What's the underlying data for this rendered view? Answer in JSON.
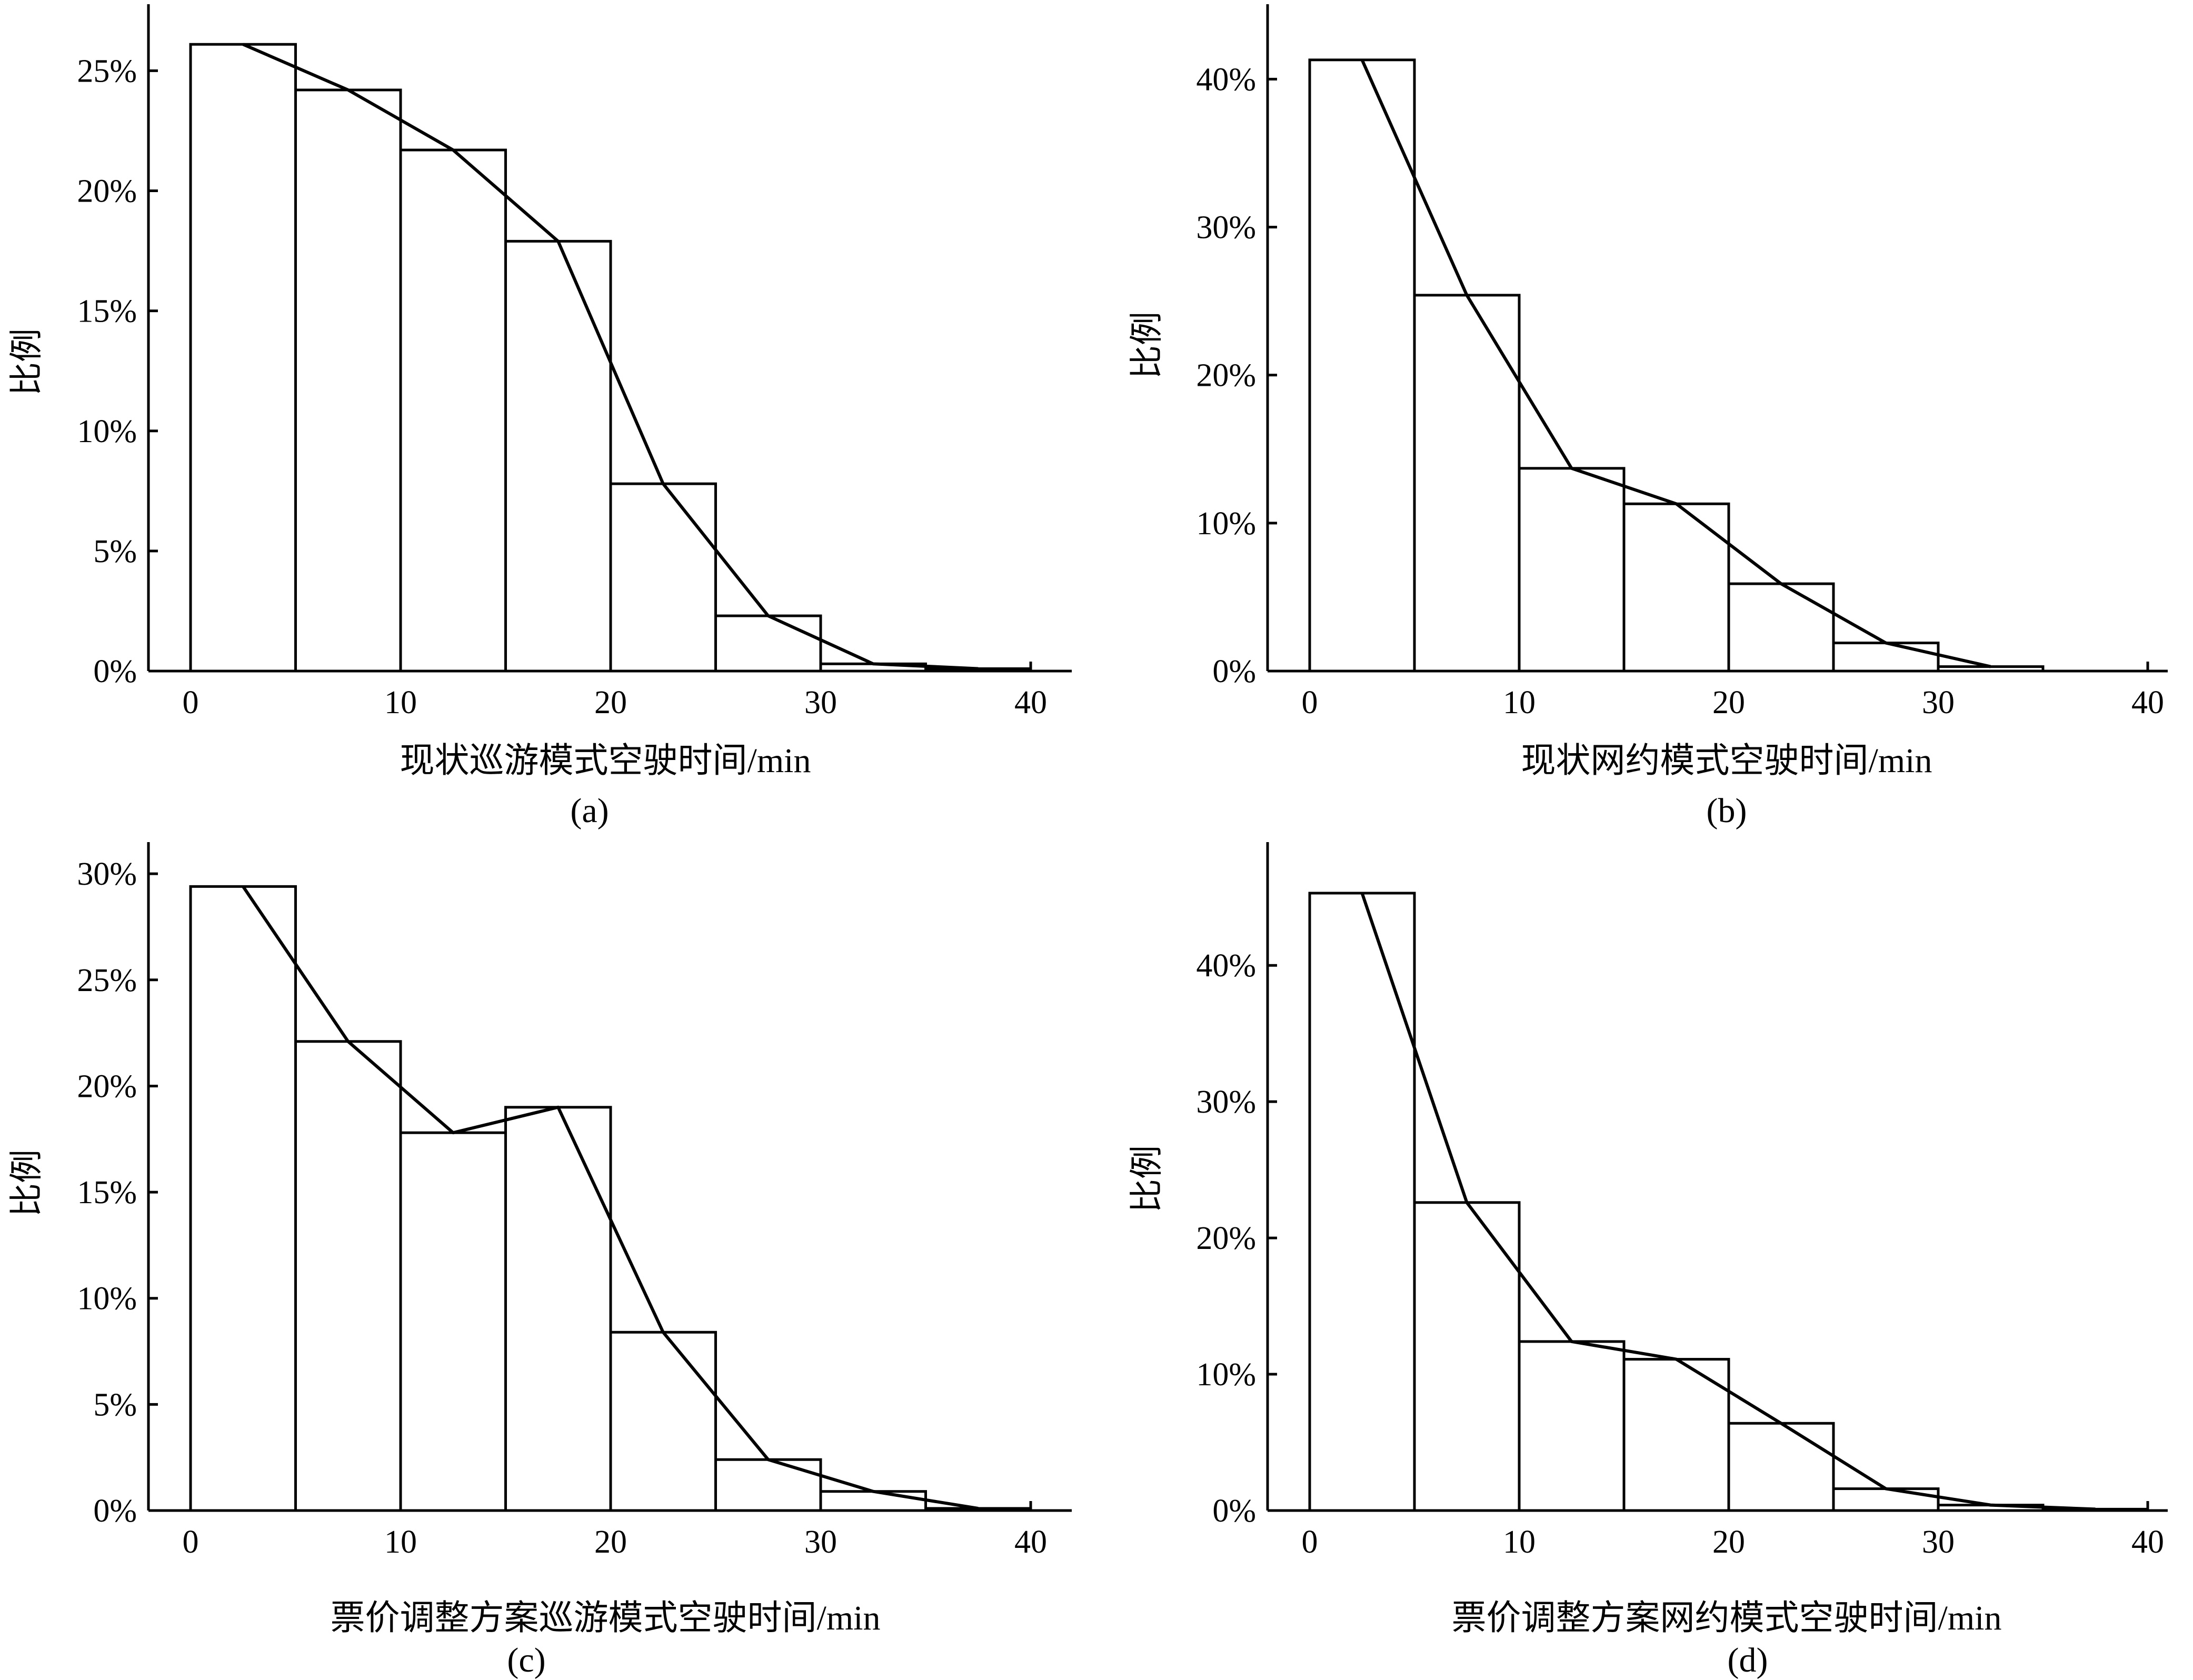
{
  "chart_data": [
    {
      "type": "bar",
      "subplot": "a",
      "caption": "(a)",
      "xlabel": "现状巡游模式空驶时间/min",
      "ylabel": "比例",
      "xlim": [
        0,
        40
      ],
      "ylim": [
        0,
        26.5
      ],
      "xticks": [
        0,
        10,
        20,
        30,
        40
      ],
      "xtick_labels": [
        "0",
        "10",
        "20",
        "30",
        "40"
      ],
      "yticks": [
        0,
        5,
        10,
        15,
        20,
        25
      ],
      "ytick_labels": [
        "0%",
        "5%",
        "10%",
        "15%",
        "20%",
        "25%"
      ],
      "bin_width": 5,
      "bin_starts": [
        0,
        5,
        10,
        15,
        20,
        25,
        30,
        35
      ],
      "values": [
        26.1,
        24.2,
        21.7,
        17.9,
        7.8,
        2.3,
        0.3,
        0.1
      ],
      "line": {
        "x": [
          2.5,
          7.5,
          12.5,
          17.5,
          22.5,
          27.5,
          32.5,
          37.5
        ],
        "y": [
          26.1,
          24.2,
          21.7,
          17.9,
          7.8,
          2.3,
          0.3,
          0.1
        ]
      },
      "grid": false,
      "legend": "none"
    },
    {
      "type": "bar",
      "subplot": "b",
      "caption": "(b)",
      "xlabel": "现状网约模式空驶时间/min",
      "ylabel": "比例",
      "xlim": [
        0,
        40
      ],
      "ylim": [
        0,
        43
      ],
      "xticks": [
        0,
        10,
        20,
        30,
        40
      ],
      "xtick_labels": [
        "0",
        "10",
        "20",
        "30",
        "40"
      ],
      "yticks": [
        0,
        10,
        20,
        30,
        40
      ],
      "ytick_labels": [
        "0%",
        "10%",
        "20%",
        "30%",
        "40%"
      ],
      "bin_width": 5,
      "bin_starts": [
        0,
        5,
        10,
        15,
        20,
        25,
        30,
        35
      ],
      "values": [
        41.3,
        25.4,
        13.7,
        11.3,
        5.9,
        1.9,
        0.3,
        0.0
      ],
      "line": {
        "x": [
          2.5,
          7.5,
          12.5,
          17.5,
          22.5,
          27.5,
          32.5
        ],
        "y": [
          41.3,
          25.4,
          13.7,
          11.3,
          5.9,
          1.9,
          0.3
        ]
      },
      "grid": false,
      "legend": "none"
    },
    {
      "type": "bar",
      "subplot": "c",
      "caption": "(c)",
      "xlabel": "票价调整方案巡游模式空驶时间/min",
      "ylabel": "比例",
      "xlim": [
        0,
        40
      ],
      "ylim": [
        0,
        30.5
      ],
      "xticks": [
        0,
        10,
        20,
        30,
        40
      ],
      "xtick_labels": [
        "0",
        "10",
        "20",
        "30",
        "40"
      ],
      "yticks": [
        0,
        5,
        10,
        15,
        20,
        25,
        30
      ],
      "ytick_labels": [
        "0%",
        "5%",
        "10%",
        "15%",
        "20%",
        "25%",
        "30%"
      ],
      "bin_width": 5,
      "bin_starts": [
        0,
        5,
        10,
        15,
        20,
        25,
        30,
        35
      ],
      "values": [
        29.4,
        22.1,
        17.8,
        19.0,
        8.4,
        2.4,
        0.9,
        0.1
      ],
      "line": {
        "x": [
          2.5,
          7.5,
          12.5,
          17.5,
          22.5,
          27.5,
          32.5,
          37.5
        ],
        "y": [
          29.4,
          22.1,
          17.8,
          19.0,
          8.4,
          2.4,
          0.9,
          0.1
        ]
      },
      "grid": false,
      "legend": "none"
    },
    {
      "type": "bar",
      "subplot": "d",
      "caption": "(d)",
      "xlabel": "票价调整方案网约模式空驶时间/min",
      "ylabel": "比例",
      "xlim": [
        0,
        40
      ],
      "ylim": [
        0,
        47.5
      ],
      "xticks": [
        0,
        10,
        20,
        30,
        40
      ],
      "xtick_labels": [
        "0",
        "10",
        "20",
        "30",
        "40"
      ],
      "yticks": [
        0,
        10,
        20,
        30,
        40
      ],
      "ytick_labels": [
        "0%",
        "10%",
        "20%",
        "30%",
        "40%"
      ],
      "bin_width": 5,
      "bin_starts": [
        0,
        5,
        10,
        15,
        20,
        25,
        30,
        35
      ],
      "values": [
        45.3,
        22.6,
        12.4,
        11.1,
        6.4,
        1.6,
        0.4,
        0.1
      ],
      "line": {
        "x": [
          2.5,
          7.5,
          12.5,
          17.5,
          22.5,
          27.5,
          32.5,
          37.5
        ],
        "y": [
          45.3,
          22.6,
          12.4,
          11.1,
          6.4,
          1.6,
          0.4,
          0.1
        ]
      },
      "grid": false,
      "legend": "none"
    }
  ]
}
